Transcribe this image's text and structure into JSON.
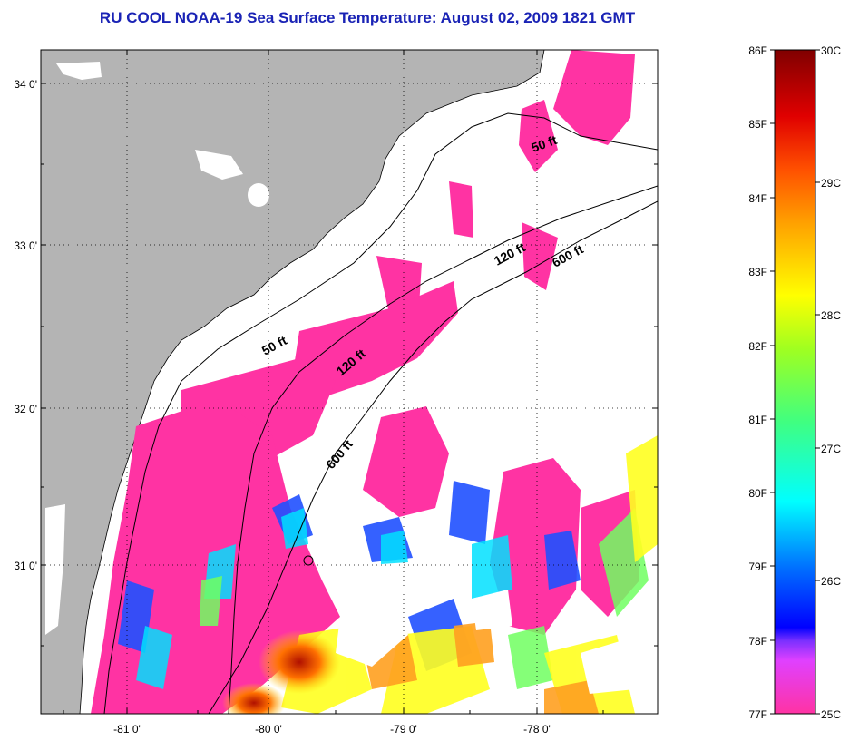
{
  "title": "RU COOL  NOAA-19  Sea Surface Temperature:  August 02, 2009 1821 GMT",
  "map": {
    "lat_ticks": [
      "34 0'",
      "33 0'",
      "32 0'",
      "31 0'"
    ],
    "lon_ticks": [
      "-81 0'",
      "-80 0'",
      "-79 0'",
      "-78 0'"
    ],
    "depth_labels": [
      "50 ft",
      "50 ft",
      "120 ft",
      "120 ft",
      "600 ft",
      "600 ft"
    ],
    "colors": {
      "land": "#b4b4b4",
      "ocean_nodata": "#ffffff",
      "coldest": "#ff33a3"
    }
  },
  "colorbar": {
    "f_labels": [
      "86F",
      "85F",
      "84F",
      "83F",
      "82F",
      "81F",
      "80F",
      "79F",
      "78F",
      "77F"
    ],
    "c_labels": [
      "30C",
      "29C",
      "28C",
      "27C",
      "26C",
      "25C"
    ]
  }
}
